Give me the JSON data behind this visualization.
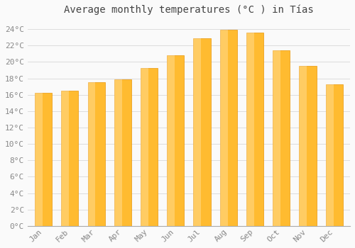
{
  "title": "Average monthly temperatures (°C ) in Tías",
  "months": [
    "Jan",
    "Feb",
    "Mar",
    "Apr",
    "May",
    "Jun",
    "Jul",
    "Aug",
    "Sep",
    "Oct",
    "Nov",
    "Dec"
  ],
  "values": [
    16.2,
    16.5,
    17.5,
    17.9,
    19.3,
    20.8,
    22.9,
    23.9,
    23.6,
    21.4,
    19.5,
    17.3
  ],
  "bar_color_top": "#FFD060",
  "bar_color_mid": "#FFBB30",
  "bar_color_edge": "#E8960A",
  "background_color": "#FAFAFA",
  "grid_color": "#DDDDDD",
  "ylim": [
    0,
    25
  ],
  "yticks": [
    0,
    2,
    4,
    6,
    8,
    10,
    12,
    14,
    16,
    18,
    20,
    22,
    24
  ],
  "title_fontsize": 10,
  "tick_fontsize": 8,
  "tick_color": "#888888",
  "font_family": "monospace"
}
